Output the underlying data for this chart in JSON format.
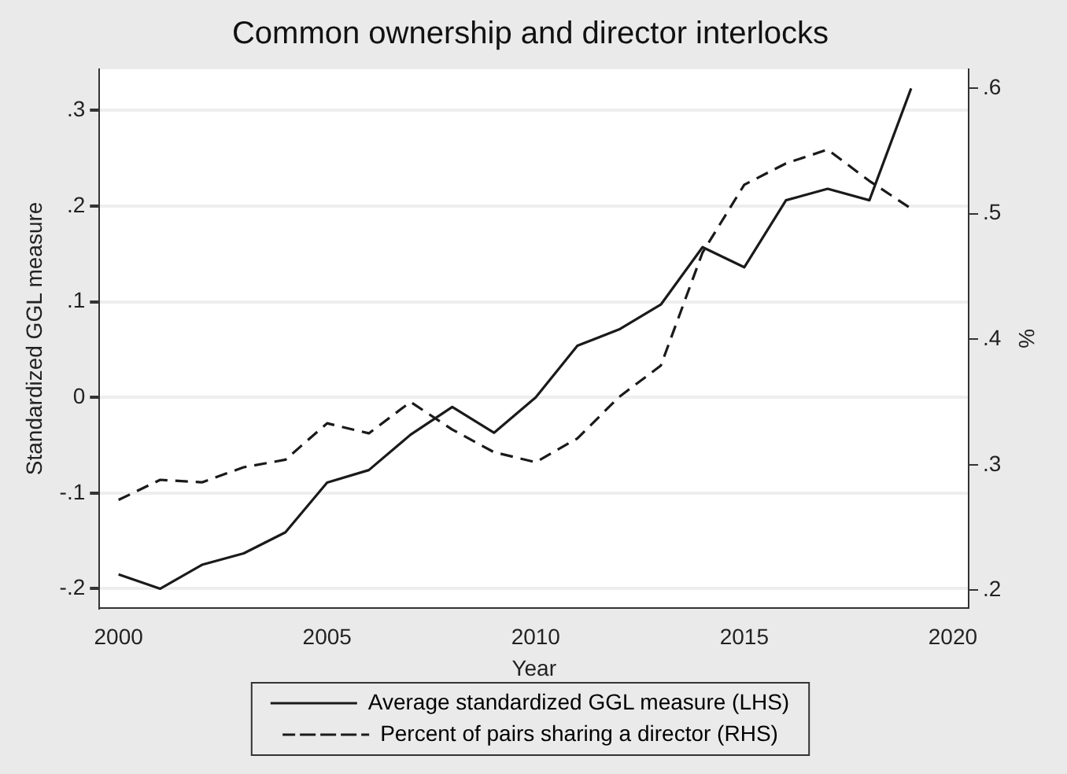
{
  "chart_data": {
    "type": "line",
    "title": "Common ownership and director interlocks",
    "xlabel": "Year",
    "ylabel": "Standardized GGL measure",
    "y2label": "%",
    "x": [
      2000,
      2001,
      2002,
      2003,
      2004,
      2005,
      2006,
      2007,
      2008,
      2009,
      2010,
      2011,
      2012,
      2013,
      2014,
      2015,
      2016,
      2017,
      2018,
      2019
    ],
    "series": [
      {
        "name": "Average standardized GGL measure (LHS)",
        "color": "#1a1a1a",
        "line_style": "solid",
        "values": [
          -0.185,
          -0.2,
          -0.175,
          -0.163,
          -0.141,
          -0.089,
          -0.076,
          -0.039,
          -0.01,
          -0.037,
          0.0,
          0.054,
          0.071,
          0.097,
          0.157,
          0.136,
          0.206,
          0.218,
          0.206,
          0.323
        ]
      },
      {
        "name": "Percent of pairs sharing a director (RHS)",
        "color": "#1a1a1a",
        "line_style": "dashed",
        "axis": "y2",
        "values": [
          0.272,
          0.288,
          0.286,
          0.298,
          0.304,
          0.333,
          0.325,
          0.35,
          0.328,
          0.31,
          0.302,
          0.321,
          0.354,
          0.379,
          0.469,
          0.523,
          0.54,
          0.551,
          0.526,
          0.504
        ]
      }
    ],
    "xlim": [
      1999.54,
      2020.38
    ],
    "xticks": [
      2000,
      2005,
      2010,
      2015,
      2020
    ],
    "ylim": [
      -0.22,
      0.343
    ],
    "yticks": [
      {
        "value": -0.2,
        "label": "-.2"
      },
      {
        "value": -0.1,
        "label": "-.1"
      },
      0,
      {
        "value": 0.1,
        "label": ".1"
      },
      {
        "value": 0.2,
        "label": ".2"
      },
      {
        "value": 0.3,
        "label": ".3"
      }
    ],
    "y2lim": [
      0.186,
      0.615
    ],
    "y2ticks": [
      {
        "value": 0.2,
        "label": ".2"
      },
      {
        "value": 0.3,
        "label": ".3"
      },
      {
        "value": 0.4,
        "label": ".4"
      },
      {
        "value": 0.5,
        "label": ".5"
      },
      {
        "value": 0.6,
        "label": ".6"
      }
    ],
    "grid": "y",
    "legend": "bottom",
    "marker": "none"
  }
}
